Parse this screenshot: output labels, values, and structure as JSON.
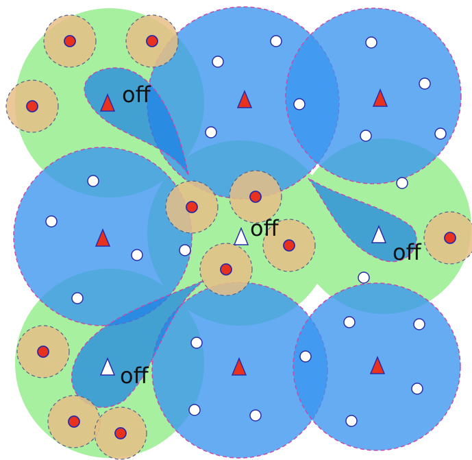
{
  "annotations": [
    "off",
    "off",
    "off",
    "off"
  ]
}
